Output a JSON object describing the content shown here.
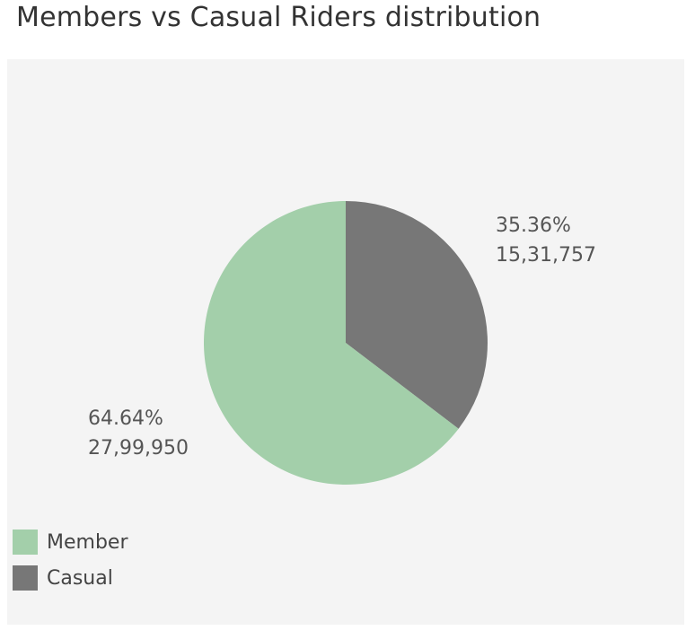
{
  "chart_data": {
    "type": "pie",
    "title": "Members vs Casual Riders distribution",
    "slices": [
      {
        "name": "Casual",
        "percent_label": "35.36%",
        "count_label": "15,31,757",
        "value": 1531757,
        "percent": 35.36,
        "color": "#777777"
      },
      {
        "name": "Member",
        "percent_label": "64.64%",
        "count_label": "27,99,950",
        "value": 2799950,
        "percent": 64.64,
        "color": "#a3cfaa"
      }
    ],
    "legend": {
      "placement": "bottom-left",
      "items": [
        {
          "label": "Member",
          "color": "#a3cfaa"
        },
        {
          "label": "Casual",
          "color": "#777777"
        }
      ]
    }
  }
}
